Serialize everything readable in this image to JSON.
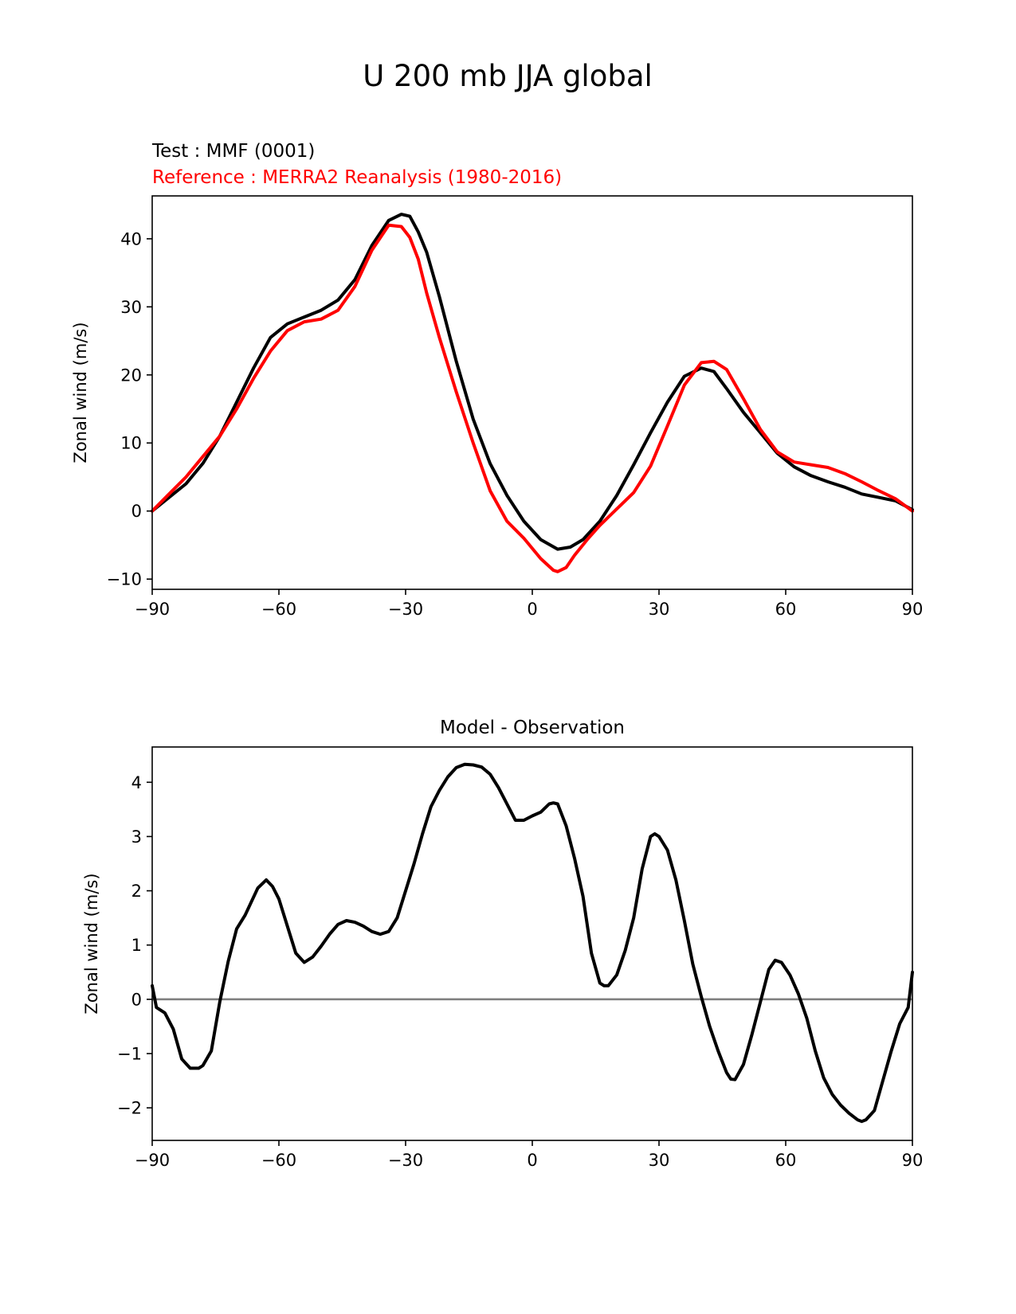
{
  "title": "U 200 mb JJA global",
  "colors": {
    "test": "#000000",
    "reference": "#ff0000",
    "zero_line": "#808080"
  },
  "chart_data": [
    {
      "type": "line",
      "subtitle_test": "Test : MMF (0001)",
      "subtitle_reference": "Reference : MERRA2 Reanalysis (1980-2016)",
      "xlabel": "",
      "ylabel": "Zonal wind (m/s)",
      "xlim": [
        -90,
        90
      ],
      "ylim": [
        -11.5,
        46.3
      ],
      "xticks": [
        -90,
        -60,
        -30,
        0,
        30,
        60,
        90
      ],
      "xtick_labels": [
        "−90",
        "−60",
        "−30",
        "0",
        "30",
        "60",
        "90"
      ],
      "yticks": [
        -10,
        0,
        10,
        20,
        30,
        40
      ],
      "ytick_labels": [
        "−10",
        "0",
        "10",
        "20",
        "30",
        "40"
      ],
      "grid": false,
      "series": [
        {
          "color": "#000000",
          "x": [
            -90,
            -86,
            -82,
            -78,
            -74,
            -70,
            -66,
            -62,
            -58,
            -54,
            -50,
            -46,
            -42,
            -38,
            -34,
            -31,
            -29,
            -27,
            -25,
            -22,
            -18,
            -14,
            -10,
            -6,
            -2,
            2,
            6,
            9,
            12,
            16,
            20,
            24,
            28,
            32,
            36,
            40,
            43,
            46,
            50,
            54,
            58,
            62,
            66,
            70,
            74,
            78,
            82,
            86,
            90
          ],
          "y": [
            0,
            2,
            4,
            7,
            11,
            16,
            21,
            25.5,
            27.5,
            28.5,
            29.5,
            31,
            34,
            39,
            42.7,
            43.6,
            43.3,
            41,
            38,
            31.5,
            22,
            13.5,
            7,
            2.3,
            -1.5,
            -4.2,
            -5.6,
            -5.3,
            -4.2,
            -1.5,
            2.3,
            6.8,
            11.5,
            16,
            19.8,
            21,
            20.5,
            18,
            14.5,
            11.5,
            8.5,
            6.5,
            5.2,
            4.3,
            3.5,
            2.5,
            2,
            1.5,
            0.2
          ]
        },
        {
          "color": "#ff0000",
          "x": [
            -90,
            -86,
            -82,
            -78,
            -74,
            -70,
            -66,
            -62,
            -58,
            -54,
            -50,
            -46,
            -42,
            -38,
            -34,
            -31,
            -29,
            -27,
            -25,
            -22,
            -18,
            -14,
            -10,
            -6,
            -2,
            2,
            5,
            6,
            8,
            10,
            13,
            16,
            20,
            24,
            28,
            32,
            36,
            40,
            43,
            46,
            50,
            54,
            58,
            62,
            66,
            70,
            74,
            78,
            82,
            86,
            90
          ],
          "y": [
            0,
            2.5,
            5,
            8,
            11,
            15,
            19.5,
            23.5,
            26.5,
            27.8,
            28.2,
            29.5,
            33,
            38.3,
            42,
            41.8,
            40.2,
            37,
            32,
            25.5,
            17.5,
            10,
            3,
            -1.5,
            -4,
            -7,
            -8.7,
            -8.9,
            -8.3,
            -6.5,
            -4.2,
            -2.1,
            0.3,
            2.7,
            6.6,
            12.5,
            18.5,
            21.8,
            22,
            20.8,
            16.5,
            12,
            8.7,
            7.2,
            6.8,
            6.4,
            5.5,
            4.3,
            3,
            1.8,
            0
          ]
        }
      ]
    },
    {
      "type": "line",
      "title": "Model - Observation",
      "xlabel": "",
      "ylabel": "Zonal wind (m/s)",
      "xlim": [
        -90,
        90
      ],
      "ylim": [
        -2.6,
        4.65
      ],
      "xticks": [
        -90,
        -60,
        -30,
        0,
        30,
        60,
        90
      ],
      "xtick_labels": [
        "−90",
        "−60",
        "−30",
        "0",
        "30",
        "60",
        "90"
      ],
      "yticks": [
        -2,
        -1,
        0,
        1,
        2,
        3,
        4
      ],
      "ytick_labels": [
        "−2",
        "−1",
        "0",
        "1",
        "2",
        "3",
        "4"
      ],
      "grid": false,
      "hline": 0,
      "series": [
        {
          "color": "#000000",
          "x": [
            -90,
            -89,
            -87,
            -85,
            -83,
            -81,
            -79,
            -78,
            -76,
            -74,
            -72,
            -70,
            -68,
            -65,
            -63,
            -61.5,
            -60,
            -58,
            -56,
            -54,
            -52,
            -50,
            -48,
            -46,
            -44,
            -42,
            -40,
            -38,
            -36,
            -34,
            -32,
            -30,
            -28,
            -26,
            -24,
            -22,
            -20,
            -18,
            -16,
            -14,
            -12,
            -10,
            -8,
            -6,
            -4,
            -2,
            0,
            2,
            4,
            5,
            6,
            8,
            10,
            12,
            14,
            16,
            17,
            18,
            20,
            22,
            24,
            26,
            28,
            29,
            30,
            32,
            34,
            36,
            38,
            40,
            42,
            44,
            46,
            47,
            48,
            50,
            52,
            54,
            56,
            57.5,
            59,
            61,
            63,
            65,
            67,
            69,
            71,
            73,
            75,
            77,
            78,
            79,
            81,
            83,
            85,
            87,
            89,
            90
          ],
          "y": [
            0.25,
            -0.15,
            -0.25,
            -0.55,
            -1.1,
            -1.27,
            -1.27,
            -1.22,
            -0.95,
            -0.05,
            0.7,
            1.3,
            1.55,
            2.05,
            2.2,
            2.08,
            1.85,
            1.35,
            0.85,
            0.68,
            0.78,
            0.98,
            1.2,
            1.38,
            1.45,
            1.42,
            1.35,
            1.25,
            1.2,
            1.25,
            1.5,
            2,
            2.5,
            3.05,
            3.55,
            3.85,
            4.1,
            4.27,
            4.33,
            4.32,
            4.28,
            4.15,
            3.9,
            3.6,
            3.3,
            3.3,
            3.38,
            3.45,
            3.6,
            3.62,
            3.6,
            3.2,
            2.6,
            1.9,
            0.85,
            0.3,
            0.25,
            0.25,
            0.45,
            0.9,
            1.5,
            2.4,
            3,
            3.05,
            3.0,
            2.75,
            2.2,
            1.45,
            0.65,
            0.05,
            -0.5,
            -0.95,
            -1.35,
            -1.47,
            -1.48,
            -1.2,
            -0.65,
            -0.05,
            0.55,
            0.72,
            0.68,
            0.45,
            0.1,
            -0.35,
            -0.95,
            -1.45,
            -1.75,
            -1.95,
            -2.1,
            -2.22,
            -2.25,
            -2.22,
            -2.05,
            -1.5,
            -0.95,
            -0.45,
            -0.15,
            0.5
          ]
        }
      ]
    }
  ]
}
